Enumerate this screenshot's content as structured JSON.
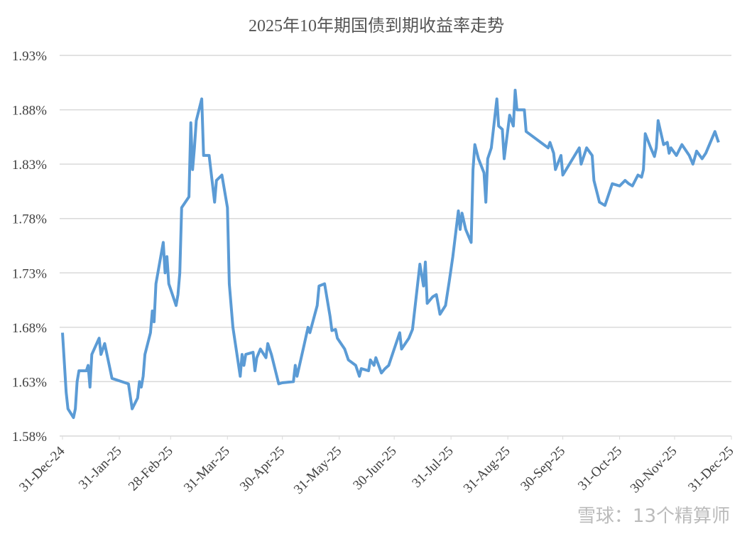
{
  "chart_data": {
    "type": "line",
    "title": "2025年10年期国债到期收益率走势",
    "watermark": "雪球：13个精算师",
    "x": [
      "2024-12-31",
      "2025-01-02",
      "2025-01-03",
      "2025-01-06",
      "2025-01-07",
      "2025-01-08",
      "2025-01-09",
      "2025-01-13",
      "2025-01-14",
      "2025-01-15",
      "2025-01-16",
      "2025-01-20",
      "2025-01-21",
      "2025-01-23",
      "2025-01-27",
      "2025-02-05",
      "2025-02-07",
      "2025-02-10",
      "2025-02-11",
      "2025-02-12",
      "2025-02-13",
      "2025-02-14",
      "2025-02-17",
      "2025-02-18",
      "2025-02-19",
      "2025-02-20",
      "2025-02-24",
      "2025-02-25",
      "2025-02-26",
      "2025-02-27",
      "2025-03-03",
      "2025-03-04",
      "2025-03-05",
      "2025-03-06",
      "2025-03-10",
      "2025-03-11",
      "2025-03-12",
      "2025-03-13",
      "2025-03-14",
      "2025-03-17",
      "2025-03-18",
      "2025-03-21",
      "2025-03-24",
      "2025-03-25",
      "2025-03-28",
      "2025-03-31",
      "2025-04-01",
      "2025-04-03",
      "2025-04-07",
      "2025-04-08",
      "2025-04-09",
      "2025-04-10",
      "2025-04-14",
      "2025-04-15",
      "2025-04-16",
      "2025-04-18",
      "2025-04-21",
      "2025-04-22",
      "2025-04-24",
      "2025-04-28",
      "2025-04-30",
      "2025-05-06",
      "2025-05-07",
      "2025-05-08",
      "2025-05-12",
      "2025-05-14",
      "2025-05-15",
      "2025-05-19",
      "2025-05-20",
      "2025-05-23",
      "2025-05-26",
      "2025-05-27",
      "2025-05-29",
      "2025-05-30",
      "2025-06-03",
      "2025-06-05",
      "2025-06-09",
      "2025-06-11",
      "2025-06-12",
      "2025-06-16",
      "2025-06-17",
      "2025-06-19",
      "2025-06-20",
      "2025-06-23",
      "2025-06-25",
      "2025-06-27",
      "2025-06-30",
      "2025-07-03",
      "2025-07-04",
      "2025-07-08",
      "2025-07-10",
      "2025-07-14",
      "2025-07-16",
      "2025-07-17",
      "2025-07-18",
      "2025-07-21",
      "2025-07-23",
      "2025-07-25",
      "2025-07-28",
      "2025-07-30",
      "2025-08-01",
      "2025-08-04",
      "2025-08-05",
      "2025-08-06",
      "2025-08-08",
      "2025-08-11",
      "2025-08-12",
      "2025-08-13",
      "2025-08-15",
      "2025-08-18",
      "2025-08-19",
      "2025-08-20",
      "2025-08-22",
      "2025-08-25",
      "2025-08-26",
      "2025-08-28",
      "2025-08-29",
      "2025-09-01",
      "2025-09-03",
      "2025-09-04",
      "2025-09-05",
      "2025-09-09",
      "2025-09-10",
      "2025-09-22",
      "2025-09-23",
      "2025-09-25",
      "2025-09-26",
      "2025-09-29",
      "2025-09-30",
      "2025-10-09",
      "2025-10-10",
      "2025-10-13",
      "2025-10-16",
      "2025-10-17",
      "2025-10-20",
      "2025-10-23",
      "2025-10-24",
      "2025-10-27",
      "2025-10-31",
      "2025-11-03",
      "2025-11-05",
      "2025-11-07",
      "2025-11-10",
      "2025-11-12",
      "2025-11-13",
      "2025-11-14",
      "2025-11-17",
      "2025-11-19",
      "2025-11-20",
      "2025-11-21",
      "2025-11-24",
      "2025-11-26",
      "2025-11-27",
      "2025-11-28",
      "2025-12-01",
      "2025-12-04",
      "2025-12-08",
      "2025-12-10",
      "2025-12-12",
      "2025-12-15",
      "2025-12-17",
      "2025-12-22",
      "2025-12-24"
    ],
    "series": [
      {
        "color": "#5b9bd5",
        "values": [
          1.675,
          1.62,
          1.605,
          1.597,
          1.605,
          1.63,
          1.64,
          1.64,
          1.645,
          1.625,
          1.655,
          1.67,
          1.655,
          1.665,
          1.633,
          1.628,
          1.605,
          1.615,
          1.63,
          1.625,
          1.635,
          1.655,
          1.675,
          1.695,
          1.685,
          1.72,
          1.758,
          1.73,
          1.745,
          1.72,
          1.7,
          1.71,
          1.73,
          1.79,
          1.8,
          1.868,
          1.825,
          1.845,
          1.87,
          1.89,
          1.838,
          1.838,
          1.795,
          1.815,
          1.82,
          1.79,
          1.72,
          1.68,
          1.635,
          1.655,
          1.645,
          1.655,
          1.657,
          1.64,
          1.652,
          1.66,
          1.652,
          1.665,
          1.655,
          1.628,
          1.629,
          1.63,
          1.645,
          1.635,
          1.665,
          1.68,
          1.675,
          1.7,
          1.718,
          1.72,
          1.69,
          1.677,
          1.678,
          1.67,
          1.66,
          1.65,
          1.645,
          1.635,
          1.642,
          1.64,
          1.65,
          1.645,
          1.652,
          1.638,
          1.642,
          1.645,
          1.66,
          1.675,
          1.66,
          1.67,
          1.678,
          1.738,
          1.718,
          1.74,
          1.702,
          1.708,
          1.71,
          1.692,
          1.7,
          1.722,
          1.745,
          1.787,
          1.77,
          1.785,
          1.77,
          1.758,
          1.825,
          1.848,
          1.835,
          1.822,
          1.795,
          1.835,
          1.845,
          1.89,
          1.865,
          1.862,
          1.835,
          1.875,
          1.865,
          1.898,
          1.88,
          1.88,
          1.86,
          1.845,
          1.85,
          1.84,
          1.825,
          1.838,
          1.82,
          1.845,
          1.83,
          1.845,
          1.838,
          1.815,
          1.795,
          1.792,
          1.797,
          1.812,
          1.81,
          1.815,
          1.812,
          1.81,
          1.82,
          1.818,
          1.825,
          1.858,
          1.845,
          1.837,
          1.845,
          1.87,
          1.848,
          1.85,
          1.84,
          1.845,
          1.838,
          1.848,
          1.838,
          1.83,
          1.842,
          1.835,
          1.84,
          1.86,
          1.85
        ]
      }
    ],
    "xlim": [
      "2024-12-31",
      "2025-12-31"
    ],
    "xticks": [
      {
        "value": "2024-12-31",
        "label": "31-Dec-24"
      },
      {
        "value": "2025-01-31",
        "label": "31-Jan-25"
      },
      {
        "value": "2025-02-28",
        "label": "28-Feb-25"
      },
      {
        "value": "2025-03-31",
        "label": "31-Mar-25"
      },
      {
        "value": "2025-04-30",
        "label": "30-Apr-25"
      },
      {
        "value": "2025-05-31",
        "label": "31-May-25"
      },
      {
        "value": "2025-06-30",
        "label": "30-Jun-25"
      },
      {
        "value": "2025-07-31",
        "label": "31-Jul-25"
      },
      {
        "value": "2025-08-31",
        "label": "31-Aug-25"
      },
      {
        "value": "2025-09-30",
        "label": "30-Sep-25"
      },
      {
        "value": "2025-10-31",
        "label": "31-Oct-25"
      },
      {
        "value": "2025-11-30",
        "label": "30-Nov-25"
      },
      {
        "value": "2025-12-31",
        "label": "31-Dec-25"
      }
    ],
    "ylim": [
      1.58,
      1.93
    ],
    "yticks": [
      {
        "value": 1.58,
        "label": "1.58%"
      },
      {
        "value": 1.63,
        "label": "1.63%"
      },
      {
        "value": 1.68,
        "label": "1.68%"
      },
      {
        "value": 1.73,
        "label": "1.73%"
      },
      {
        "value": 1.78,
        "label": "1.78%"
      },
      {
        "value": 1.83,
        "label": "1.83%"
      },
      {
        "value": 1.88,
        "label": "1.88%"
      },
      {
        "value": 1.93,
        "label": "1.93%"
      }
    ],
    "grid": true
  }
}
